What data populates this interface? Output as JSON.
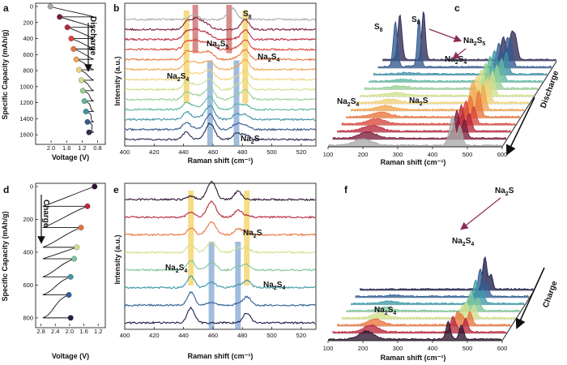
{
  "panel_labels": {
    "a": "a",
    "b": "b",
    "c": "c",
    "d": "d",
    "e": "e",
    "f": "f"
  },
  "colors": {
    "discharge": [
      "#a9a9a9",
      "#7a1d3a",
      "#b8283c",
      "#d9473a",
      "#e8743c",
      "#f0a64f",
      "#f1d27a",
      "#cfe08a",
      "#97cf93",
      "#5fb7a0",
      "#3d8fa7",
      "#35598e",
      "#2d2a55"
    ],
    "charge": [
      "#2d1430",
      "#b8283c",
      "#e8743c",
      "#cfe08a",
      "#7fc59b",
      "#3e9aa8",
      "#2f5f94",
      "#1e1e4a"
    ],
    "band_yellow": "#f3c945",
    "band_blue": "#6f99cc",
    "band_red": "#c0504d",
    "arrow": "#8b2c5a"
  },
  "chart_data": [
    {
      "id": "a",
      "type": "line",
      "title": "",
      "xlabel": "Voltage (V)",
      "ylabel": "Specific Capacity (mAh/g)",
      "xticks": [
        "2.0",
        "1.6",
        "1.2",
        "0.8"
      ],
      "yticks": [
        "0",
        "200",
        "400",
        "600",
        "800",
        "1000",
        "1200",
        "1400",
        "1600"
      ],
      "xlim": [
        2.4,
        0.6
      ],
      "ylim": [
        0,
        1700
      ],
      "annotation": "Discharge",
      "x": [
        2.02,
        1.78,
        1.58,
        1.48,
        1.42,
        1.35,
        1.28,
        1.22,
        1.18,
        1.14,
        1.1,
        1.06,
        1.02
      ],
      "y": [
        0,
        130,
        260,
        400,
        530,
        660,
        790,
        920,
        1050,
        1180,
        1310,
        1440,
        1570
      ]
    },
    {
      "id": "b",
      "type": "line",
      "xlabel": "Raman shift (cm⁻¹)",
      "ylabel": "Intensity (a.u.)",
      "xticks": [
        "400",
        "420",
        "440",
        "460",
        "480",
        "500",
        "520"
      ],
      "xlim": [
        400,
        530
      ],
      "series_count": 13,
      "peaks": {
        "S8": [
          473,
          447
        ],
        "Na2S5": [
          448,
          454
        ],
        "Na2S4": [
          442,
          482
        ],
        "Na2S": [
          458,
          476
        ]
      },
      "bands": [
        {
          "center": 442,
          "color": "yellow"
        },
        {
          "center": 448,
          "color": "red"
        },
        {
          "center": 471,
          "color": "red"
        },
        {
          "center": 482,
          "color": "yellow"
        },
        {
          "center": 458,
          "color": "blue"
        },
        {
          "center": 476,
          "color": "blue"
        }
      ],
      "labels": {
        "s8": "S",
        "s8_sub": "8",
        "na2s5": "Na",
        "na2s5_sub1": "2",
        "na2s5_s": "S",
        "na2s5_sub2": "5",
        "na2s4_right": "Na2S4",
        "na2s4_left": "Na2S4",
        "na2s": "Na2S"
      }
    },
    {
      "id": "c",
      "type": "area",
      "xlabel": "Raman shift (cm⁻¹)",
      "xticks": [
        "100",
        "200",
        "300",
        "400",
        "500",
        "600"
      ],
      "xlim": [
        100,
        600
      ],
      "annotation": "Discharge",
      "labels": {
        "s8_a": "S8",
        "s8_b": "S8",
        "na2s5": "Na2S5",
        "na2s4_top": "Na2S4",
        "na2s4_left": "Na2S4",
        "na2s": "Na2S"
      }
    },
    {
      "id": "d",
      "type": "line",
      "xlabel": "Voltage (V)",
      "ylabel": "Specific Capacity (mAh/g)",
      "xticks": [
        "2.8",
        "2.4",
        "2.0",
        "1.6",
        "1.2"
      ],
      "yticks": [
        "0",
        "200",
        "400",
        "600",
        "800"
      ],
      "xlim": [
        2.95,
        1.0
      ],
      "ylim": [
        0,
        850
      ],
      "annotation": "Charge",
      "x": [
        1.3,
        1.5,
        1.68,
        1.8,
        1.87,
        1.97,
        2.02,
        1.97
      ],
      "y": [
        0,
        120,
        250,
        370,
        440,
        550,
        660,
        800
      ]
    },
    {
      "id": "e",
      "type": "line",
      "xlabel": "Raman shift (cm⁻¹)",
      "ylabel": "Intensity (a.u.)",
      "xticks": [
        "400",
        "420",
        "440",
        "460",
        "480",
        "500",
        "520"
      ],
      "xlim": [
        400,
        530
      ],
      "series_count": 8,
      "bands": [
        {
          "center": 445,
          "color": "yellow"
        },
        {
          "center": 483,
          "color": "yellow"
        },
        {
          "center": 459,
          "color": "blue"
        },
        {
          "center": 477,
          "color": "blue"
        }
      ],
      "labels": {
        "na2s": "Na2S",
        "na2s4_left": "Na2S4",
        "na2s4_right": "Na2S4"
      }
    },
    {
      "id": "f",
      "type": "area",
      "xlabel": "Raman shift (cm⁻¹)",
      "xticks": [
        "100",
        "200",
        "300",
        "400",
        "500",
        "600"
      ],
      "xlim": [
        100,
        600
      ],
      "annotation": "Charge",
      "labels": {
        "na2s_top": "Na2S",
        "na2s4_top": "Na2S4",
        "na2s4_left": "Na2S4"
      }
    }
  ]
}
